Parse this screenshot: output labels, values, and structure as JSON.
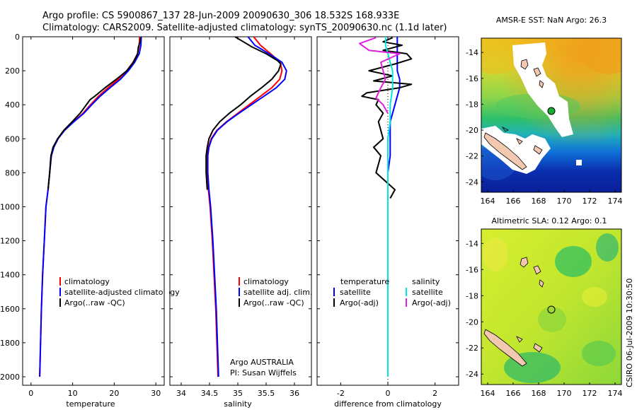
{
  "title": {
    "line1": "Argo profile: CS 5900867_137 28-Jun-2009 20090630_306 18.532S 168.933E",
    "line2": "Climatology: CARS2009. Satellite-adjusted climatology: synTS_20090630.nc (1.1d later)"
  },
  "footer": {
    "argo_label": "Argo AUSTRALIA",
    "pi_label": "PI: Susan Wijffels",
    "stamp": "CSIRO 06-Jul-2009 10:30:50"
  },
  "colors": {
    "climatology": "#ff0000",
    "satellite": "#0000ff",
    "argo": "#000000",
    "sat_sal": "#00e5e5",
    "argo_sal": "#e020e0"
  },
  "chart_data": [
    {
      "type": "line",
      "name": "temperature",
      "xlabel": "temperature",
      "ylabel": "",
      "xlim": [
        -2,
        32
      ],
      "ylim": [
        2050,
        0
      ],
      "xticks": [
        0,
        10,
        20,
        30
      ],
      "yticks": [
        0,
        200,
        400,
        600,
        800,
        1000,
        1200,
        1400,
        1600,
        1800,
        2000
      ],
      "legend": [
        "climatology",
        "satellite-adjusted climatology",
        "Argo(..raw -QC)"
      ],
      "series": [
        {
          "name": "climatology",
          "color": "#ff0000",
          "points": [
            [
              26.1,
              0
            ],
            [
              26.0,
              50
            ],
            [
              25.6,
              100
            ],
            [
              24.5,
              150
            ],
            [
              23.0,
              200
            ],
            [
              21.0,
              250
            ],
            [
              18.5,
              300
            ],
            [
              16.2,
              350
            ],
            [
              14.3,
              400
            ],
            [
              12.5,
              450
            ],
            [
              10.2,
              500
            ],
            [
              8.0,
              550
            ],
            [
              6.4,
              600
            ],
            [
              5.4,
              650
            ],
            [
              4.8,
              700
            ],
            [
              4.5,
              800
            ],
            [
              4.1,
              900
            ],
            [
              3.6,
              1000
            ],
            [
              3.2,
              1200
            ],
            [
              2.8,
              1400
            ],
            [
              2.5,
              1600
            ],
            [
              2.3,
              1800
            ],
            [
              2.1,
              2000
            ]
          ]
        },
        {
          "name": "satellite-adjusted climatology",
          "color": "#0000ff",
          "points": [
            [
              26.5,
              0
            ],
            [
              26.4,
              50
            ],
            [
              26.0,
              100
            ],
            [
              24.9,
              150
            ],
            [
              23.4,
              200
            ],
            [
              21.5,
              250
            ],
            [
              19.0,
              300
            ],
            [
              16.6,
              350
            ],
            [
              14.6,
              400
            ],
            [
              12.7,
              450
            ],
            [
              10.3,
              500
            ],
            [
              8.1,
              550
            ],
            [
              6.5,
              600
            ],
            [
              5.5,
              650
            ],
            [
              4.9,
              700
            ],
            [
              4.5,
              800
            ],
            [
              4.1,
              900
            ],
            [
              3.6,
              1000
            ],
            [
              3.2,
              1200
            ],
            [
              2.8,
              1400
            ],
            [
              2.5,
              1600
            ],
            [
              2.3,
              1800
            ],
            [
              2.1,
              2000
            ]
          ]
        },
        {
          "name": "Argo(..raw -QC)",
          "color": "#000000",
          "points": [
            [
              26.3,
              5
            ],
            [
              26.2,
              30
            ],
            [
              25.8,
              60
            ],
            [
              25.6,
              100
            ],
            [
              24.6,
              150
            ],
            [
              23.0,
              200
            ],
            [
              20.5,
              250
            ],
            [
              17.8,
              300
            ],
            [
              15.3,
              350
            ],
            [
              14.2,
              370
            ],
            [
              13.3,
              400
            ],
            [
              11.8,
              450
            ],
            [
              9.9,
              500
            ],
            [
              7.9,
              550
            ],
            [
              6.4,
              600
            ],
            [
              5.3,
              650
            ],
            [
              4.8,
              700
            ],
            [
              4.5,
              800
            ],
            [
              4.1,
              900
            ]
          ]
        }
      ]
    },
    {
      "type": "line",
      "name": "salinity",
      "xlabel": "salinity",
      "ylabel": "",
      "xlim": [
        33.8,
        36.3
      ],
      "ylim": [
        2050,
        0
      ],
      "xticks": [
        34,
        34.5,
        35,
        35.5,
        36
      ],
      "yticks": [
        0,
        200,
        400,
        600,
        800,
        1000,
        1200,
        1400,
        1600,
        1800,
        2000
      ],
      "legend": [
        "climatology",
        "satellite adj. clim.",
        "Argo(..raw -QC)"
      ],
      "series": [
        {
          "name": "climatology",
          "color": "#ff0000",
          "points": [
            [
              35.28,
              0
            ],
            [
              35.4,
              50
            ],
            [
              35.58,
              100
            ],
            [
              35.75,
              150
            ],
            [
              35.78,
              200
            ],
            [
              35.74,
              250
            ],
            [
              35.6,
              300
            ],
            [
              35.4,
              350
            ],
            [
              35.2,
              400
            ],
            [
              35.0,
              450
            ],
            [
              34.8,
              500
            ],
            [
              34.63,
              550
            ],
            [
              34.53,
              600
            ],
            [
              34.48,
              650
            ],
            [
              34.46,
              700
            ],
            [
              34.46,
              800
            ],
            [
              34.48,
              900
            ],
            [
              34.51,
              1000
            ],
            [
              34.55,
              1200
            ],
            [
              34.58,
              1400
            ],
            [
              34.61,
              1600
            ],
            [
              34.63,
              1800
            ],
            [
              34.65,
              2000
            ]
          ]
        },
        {
          "name": "satellite adj. clim.",
          "color": "#0000ff",
          "points": [
            [
              35.18,
              0
            ],
            [
              35.3,
              50
            ],
            [
              35.55,
              100
            ],
            [
              35.78,
              150
            ],
            [
              35.86,
              200
            ],
            [
              35.83,
              250
            ],
            [
              35.68,
              300
            ],
            [
              35.46,
              350
            ],
            [
              35.24,
              400
            ],
            [
              35.02,
              450
            ],
            [
              34.81,
              500
            ],
            [
              34.64,
              550
            ],
            [
              34.54,
              600
            ],
            [
              34.49,
              650
            ],
            [
              34.47,
              700
            ],
            [
              34.47,
              800
            ],
            [
              34.49,
              900
            ],
            [
              34.52,
              1000
            ],
            [
              34.56,
              1200
            ],
            [
              34.59,
              1400
            ],
            [
              34.62,
              1600
            ],
            [
              34.64,
              1800
            ],
            [
              34.66,
              2000
            ]
          ]
        },
        {
          "name": "Argo(..raw -QC)",
          "color": "#000000",
          "points": [
            [
              34.95,
              0
            ],
            [
              35.1,
              30
            ],
            [
              35.25,
              60
            ],
            [
              35.5,
              100
            ],
            [
              35.7,
              140
            ],
            [
              35.76,
              160
            ],
            [
              35.72,
              200
            ],
            [
              35.6,
              250
            ],
            [
              35.42,
              300
            ],
            [
              35.22,
              350
            ],
            [
              35.05,
              400
            ],
            [
              34.85,
              450
            ],
            [
              34.68,
              500
            ],
            [
              34.56,
              550
            ],
            [
              34.49,
              600
            ],
            [
              34.46,
              650
            ],
            [
              34.44,
              700
            ],
            [
              34.44,
              800
            ],
            [
              34.46,
              900
            ]
          ]
        }
      ]
    },
    {
      "type": "line",
      "name": "difference from climatology",
      "xlabel": "difference from climatology",
      "ylabel": "",
      "xlim": [
        -3,
        3
      ],
      "ylim": [
        2050,
        0
      ],
      "xticks": [
        -2,
        0,
        2
      ],
      "yticks": [
        0,
        200,
        400,
        600,
        800,
        1000,
        1200,
        1400,
        1600,
        1800,
        2000
      ],
      "legend_headers": [
        "temperature",
        "salinity"
      ],
      "legend": [
        "satellite",
        "Argo(-adj)",
        "satellite",
        "Argo(-adj)"
      ],
      "series": [
        {
          "name": "temperature satellite",
          "color": "#0000ff",
          "points": [
            [
              0.4,
              0
            ],
            [
              0.4,
              50
            ],
            [
              0.4,
              100
            ],
            [
              0.4,
              150
            ],
            [
              0.4,
              200
            ],
            [
              0.5,
              250
            ],
            [
              0.5,
              300
            ],
            [
              0.4,
              350
            ],
            [
              0.3,
              400
            ],
            [
              0.2,
              450
            ],
            [
              0.1,
              500
            ],
            [
              0.1,
              600
            ],
            [
              0.1,
              700
            ],
            [
              0.0,
              800
            ],
            [
              0.0,
              1000
            ],
            [
              0.0,
              1500
            ],
            [
              0.0,
              2000
            ]
          ]
        },
        {
          "name": "temperature Argo(-adj)",
          "color": "#000000",
          "points": [
            [
              0.2,
              5
            ],
            [
              -0.2,
              30
            ],
            [
              0.6,
              50
            ],
            [
              -0.2,
              80
            ],
            [
              0.8,
              100
            ],
            [
              1.0,
              130
            ],
            [
              0.3,
              160
            ],
            [
              -0.8,
              200
            ],
            [
              0.2,
              230
            ],
            [
              -0.6,
              260
            ],
            [
              1.0,
              280
            ],
            [
              0.5,
              300
            ],
            [
              -0.9,
              330
            ],
            [
              -1.1,
              350
            ],
            [
              -0.4,
              370
            ],
            [
              -0.5,
              400
            ],
            [
              -0.2,
              450
            ],
            [
              -0.4,
              500
            ],
            [
              -0.3,
              550
            ],
            [
              -0.2,
              600
            ],
            [
              -0.6,
              650
            ],
            [
              -0.3,
              700
            ],
            [
              -0.5,
              800
            ],
            [
              0.3,
              900
            ],
            [
              0.1,
              950
            ]
          ]
        },
        {
          "name": "salinity satellite",
          "color": "#00e5e5",
          "points": [
            [
              -0.1,
              0
            ],
            [
              -0.1,
              50
            ],
            [
              0.0,
              100
            ],
            [
              0.1,
              150
            ],
            [
              0.2,
              200
            ],
            [
              0.2,
              250
            ],
            [
              0.2,
              300
            ],
            [
              0.1,
              400
            ],
            [
              0.1,
              500
            ],
            [
              0.0,
              600
            ],
            [
              0.0,
              800
            ],
            [
              0.0,
              1000
            ],
            [
              0.0,
              1500
            ],
            [
              0.0,
              2000
            ]
          ]
        },
        {
          "name": "salinity Argo(-adj)",
          "color": "#e020e0",
          "points": [
            [
              -0.5,
              5
            ],
            [
              -1.2,
              40
            ],
            [
              -0.8,
              80
            ],
            [
              0.5,
              100
            ],
            [
              -0.3,
              150
            ],
            [
              -0.2,
              200
            ],
            [
              -0.1,
              250
            ],
            [
              -0.3,
              300
            ],
            [
              -0.5,
              360
            ],
            [
              -0.2,
              400
            ],
            [
              0.0,
              450
            ]
          ]
        }
      ]
    },
    {
      "type": "heatmap",
      "name": "AMSR-E SST map",
      "title": "AMSR-E SST: NaN Argo: 26.3",
      "xlim": [
        163.5,
        174.5
      ],
      "ylim": [
        -24.8,
        -12.9
      ],
      "xticks": [
        164,
        166,
        168,
        170,
        172,
        174
      ],
      "yticks": [
        -14,
        -16,
        -18,
        -20,
        -22,
        -24
      ],
      "profile_location": [
        168.933,
        -18.532
      ]
    },
    {
      "type": "heatmap",
      "name": "Altimetric SLA map",
      "title": "Altimetric SLA: 0.12 Argo: 0.1",
      "xlim": [
        163.5,
        174.5
      ],
      "ylim": [
        -24.8,
        -12.9
      ],
      "xticks": [
        164,
        166,
        168,
        170,
        172,
        174
      ],
      "yticks": [
        -14,
        -16,
        -18,
        -20,
        -22,
        -24
      ],
      "profile_location": [
        168.933,
        -18.532
      ]
    }
  ]
}
